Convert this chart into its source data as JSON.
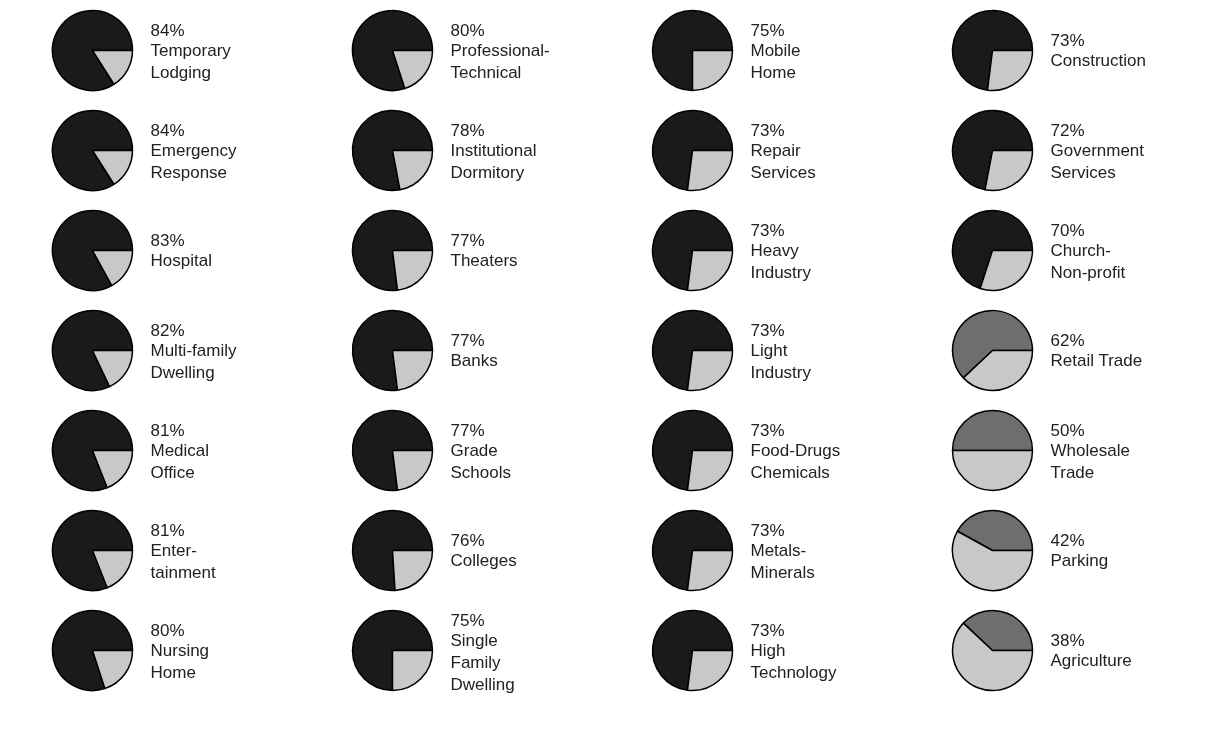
{
  "chart_data": [
    {
      "type": "pie",
      "title": "Temporary\nLodging",
      "categories": [
        null,
        null
      ],
      "values": [
        84,
        16
      ],
      "colors": [
        "#1a1a1a",
        "#c8c8c8"
      ],
      "value_labels": [
        "84%",
        null
      ]
    },
    {
      "type": "pie",
      "title": "Professional-\nTechnical",
      "categories": [
        null,
        null
      ],
      "values": [
        80,
        20
      ],
      "colors": [
        "#1a1a1a",
        "#c8c8c8"
      ],
      "value_labels": [
        "80%",
        null
      ]
    },
    {
      "type": "pie",
      "title": "Mobile\nHome",
      "categories": [
        null,
        null
      ],
      "values": [
        75,
        25
      ],
      "colors": [
        "#1a1a1a",
        "#c8c8c8"
      ],
      "value_labels": [
        "75%",
        null
      ]
    },
    {
      "type": "pie",
      "title": "Construction",
      "categories": [
        null,
        null
      ],
      "values": [
        73,
        27
      ],
      "colors": [
        "#1a1a1a",
        "#c8c8c8"
      ],
      "value_labels": [
        "73%",
        null
      ]
    },
    {
      "type": "pie",
      "title": "Emergency\nResponse",
      "categories": [
        null,
        null
      ],
      "values": [
        84,
        16
      ],
      "colors": [
        "#1a1a1a",
        "#c8c8c8"
      ],
      "value_labels": [
        "84%",
        null
      ]
    },
    {
      "type": "pie",
      "title": "Institutional\nDormitory",
      "categories": [
        null,
        null
      ],
      "values": [
        78,
        22
      ],
      "colors": [
        "#1a1a1a",
        "#c8c8c8"
      ],
      "value_labels": [
        "78%",
        null
      ]
    },
    {
      "type": "pie",
      "title": "Repair\nServices",
      "categories": [
        null,
        null
      ],
      "values": [
        73,
        27
      ],
      "colors": [
        "#1a1a1a",
        "#c8c8c8"
      ],
      "value_labels": [
        "73%",
        null
      ]
    },
    {
      "type": "pie",
      "title": "Government\nServices",
      "categories": [
        null,
        null
      ],
      "values": [
        72,
        28
      ],
      "colors": [
        "#1a1a1a",
        "#c8c8c8"
      ],
      "value_labels": [
        "72%",
        null
      ]
    },
    {
      "type": "pie",
      "title": "Hospital",
      "categories": [
        null,
        null
      ],
      "values": [
        83,
        17
      ],
      "colors": [
        "#1a1a1a",
        "#c8c8c8"
      ],
      "value_labels": [
        "83%",
        null
      ]
    },
    {
      "type": "pie",
      "title": "Theaters",
      "categories": [
        null,
        null
      ],
      "values": [
        77,
        23
      ],
      "colors": [
        "#1a1a1a",
        "#c8c8c8"
      ],
      "value_labels": [
        "77%",
        null
      ]
    },
    {
      "type": "pie",
      "title": "Heavy\nIndustry",
      "categories": [
        null,
        null
      ],
      "values": [
        73,
        27
      ],
      "colors": [
        "#1a1a1a",
        "#c8c8c8"
      ],
      "value_labels": [
        "73%",
        null
      ]
    },
    {
      "type": "pie",
      "title": "Church-\nNon-profit",
      "categories": [
        null,
        null
      ],
      "values": [
        70,
        30
      ],
      "colors": [
        "#1a1a1a",
        "#c8c8c8"
      ],
      "value_labels": [
        "70%",
        null
      ]
    },
    {
      "type": "pie",
      "title": "Multi-family\nDwelling",
      "categories": [
        null,
        null
      ],
      "values": [
        82,
        18
      ],
      "colors": [
        "#1a1a1a",
        "#c8c8c8"
      ],
      "value_labels": [
        "82%",
        null
      ]
    },
    {
      "type": "pie",
      "title": "Banks",
      "categories": [
        null,
        null
      ],
      "values": [
        77,
        23
      ],
      "colors": [
        "#1a1a1a",
        "#c8c8c8"
      ],
      "value_labels": [
        "77%",
        null
      ]
    },
    {
      "type": "pie",
      "title": "Light\nIndustry",
      "categories": [
        null,
        null
      ],
      "values": [
        73,
        27
      ],
      "colors": [
        "#1a1a1a",
        "#c8c8c8"
      ],
      "value_labels": [
        "73%",
        null
      ]
    },
    {
      "type": "pie",
      "title": "Retail Trade",
      "categories": [
        null,
        null
      ],
      "values": [
        62,
        38
      ],
      "colors": [
        "#6e6e6e",
        "#c8c8c8"
      ],
      "value_labels": [
        "62%",
        null
      ]
    },
    {
      "type": "pie",
      "title": "Medical\nOffice",
      "categories": [
        null,
        null
      ],
      "values": [
        81,
        19
      ],
      "colors": [
        "#1a1a1a",
        "#c8c8c8"
      ],
      "value_labels": [
        "81%",
        null
      ]
    },
    {
      "type": "pie",
      "title": "Grade\nSchools",
      "categories": [
        null,
        null
      ],
      "values": [
        77,
        23
      ],
      "colors": [
        "#1a1a1a",
        "#c8c8c8"
      ],
      "value_labels": [
        "77%",
        null
      ]
    },
    {
      "type": "pie",
      "title": "Food-Drugs\nChemicals",
      "categories": [
        null,
        null
      ],
      "values": [
        73,
        27
      ],
      "colors": [
        "#1a1a1a",
        "#c8c8c8"
      ],
      "value_labels": [
        "73%",
        null
      ]
    },
    {
      "type": "pie",
      "title": "Wholesale\nTrade",
      "categories": [
        null,
        null
      ],
      "values": [
        50,
        50
      ],
      "colors": [
        "#6e6e6e",
        "#c8c8c8"
      ],
      "value_labels": [
        "50%",
        null
      ]
    },
    {
      "type": "pie",
      "title": "Enter-\ntainment",
      "categories": [
        null,
        null
      ],
      "values": [
        81,
        19
      ],
      "colors": [
        "#1a1a1a",
        "#c8c8c8"
      ],
      "value_labels": [
        "81%",
        null
      ]
    },
    {
      "type": "pie",
      "title": "Colleges",
      "categories": [
        null,
        null
      ],
      "values": [
        76,
        24
      ],
      "colors": [
        "#1a1a1a",
        "#c8c8c8"
      ],
      "value_labels": [
        "76%",
        null
      ]
    },
    {
      "type": "pie",
      "title": "Metals-\nMinerals",
      "categories": [
        null,
        null
      ],
      "values": [
        73,
        27
      ],
      "colors": [
        "#1a1a1a",
        "#c8c8c8"
      ],
      "value_labels": [
        "73%",
        null
      ]
    },
    {
      "type": "pie",
      "title": "Parking",
      "categories": [
        null,
        null
      ],
      "values": [
        42,
        58
      ],
      "colors": [
        "#6e6e6e",
        "#c8c8c8"
      ],
      "value_labels": [
        "42%",
        null
      ]
    },
    {
      "type": "pie",
      "title": "Nursing\nHome",
      "categories": [
        null,
        null
      ],
      "values": [
        80,
        20
      ],
      "colors": [
        "#1a1a1a",
        "#c8c8c8"
      ],
      "value_labels": [
        "80%",
        null
      ]
    },
    {
      "type": "pie",
      "title": "Single\nFamily\nDwelling",
      "categories": [
        null,
        null
      ],
      "values": [
        75,
        25
      ],
      "colors": [
        "#1a1a1a",
        "#c8c8c8"
      ],
      "value_labels": [
        "75%",
        null
      ]
    },
    {
      "type": "pie",
      "title": "High\nTechnology",
      "categories": [
        null,
        null
      ],
      "values": [
        73,
        27
      ],
      "colors": [
        "#1a1a1a",
        "#c8c8c8"
      ],
      "value_labels": [
        "73%",
        null
      ]
    },
    {
      "type": "pie",
      "title": "Agriculture",
      "categories": [
        null,
        null
      ],
      "values": [
        38,
        62
      ],
      "colors": [
        "#6e6e6e",
        "#c8c8c8"
      ],
      "value_labels": [
        "38%",
        null
      ]
    }
  ]
}
